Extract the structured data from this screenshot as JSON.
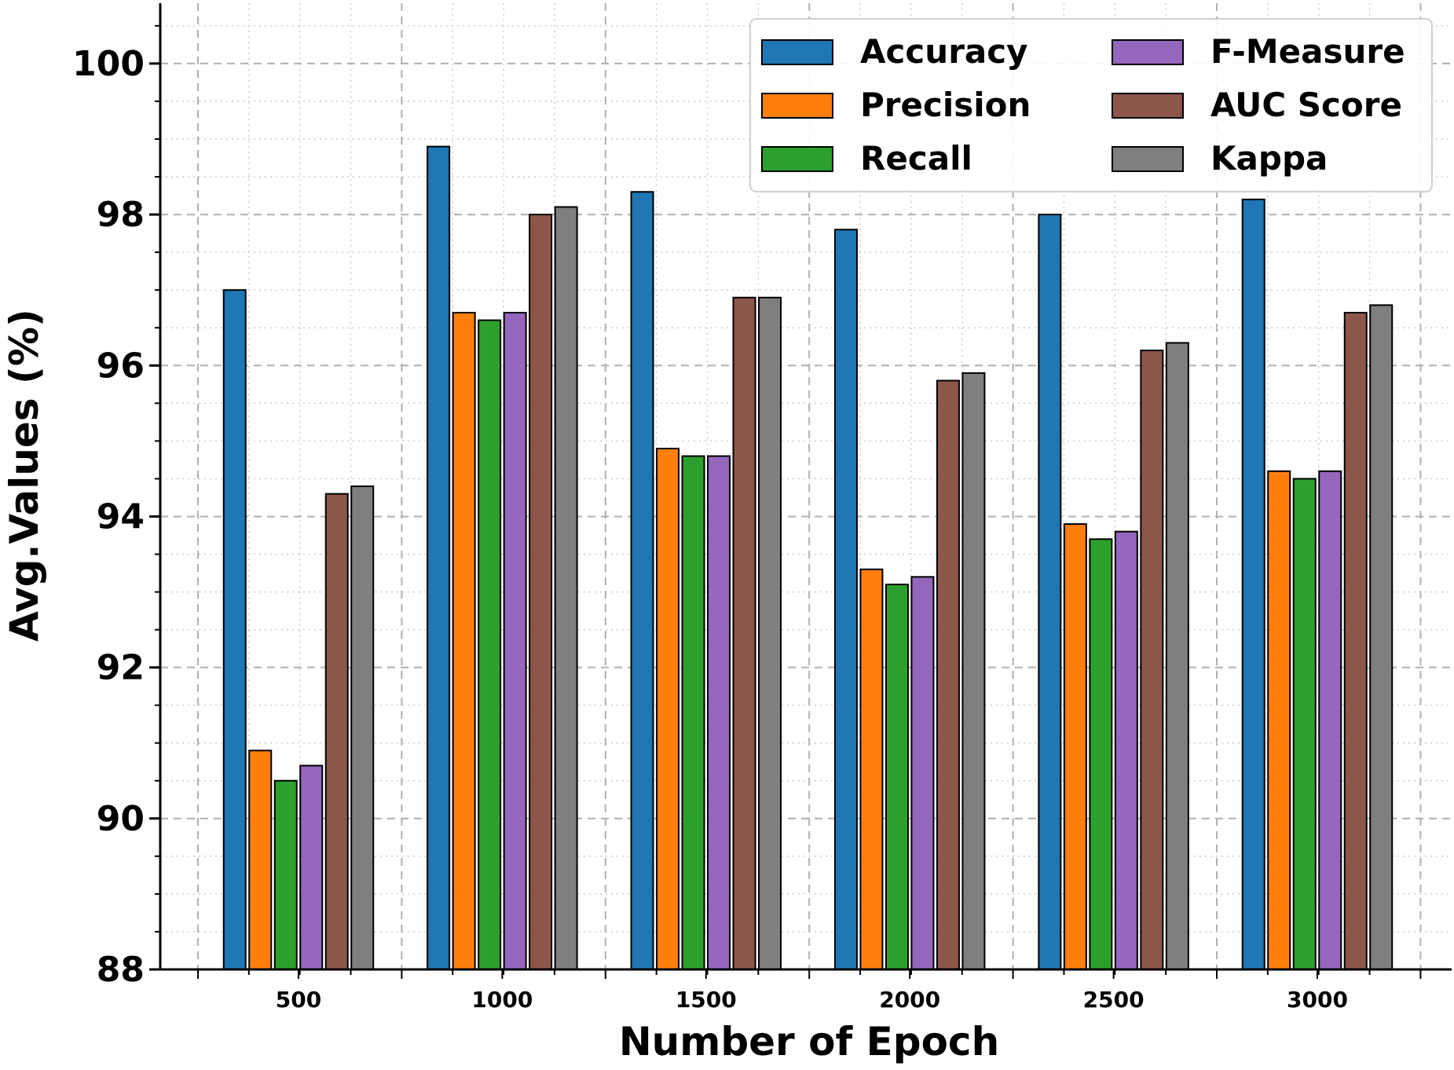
{
  "chart_data": {
    "type": "bar",
    "title": "",
    "xlabel": "Number of Epoch",
    "ylabel": "Avg.Values (%)",
    "categories": [
      "500",
      "1000",
      "1500",
      "2000",
      "2500",
      "3000"
    ],
    "ylim": [
      88,
      100.8
    ],
    "yticks": [
      88,
      90,
      92,
      94,
      96,
      98,
      100
    ],
    "grid": true,
    "legend_position": "top-right",
    "series": [
      {
        "name": "Accuracy",
        "color": "#1f77b4",
        "values": [
          97.0,
          98.9,
          98.3,
          97.8,
          98.0,
          98.2
        ]
      },
      {
        "name": "Precision",
        "color": "#ff7f0e",
        "values": [
          90.9,
          96.7,
          94.9,
          93.3,
          93.9,
          94.6
        ]
      },
      {
        "name": "Recall",
        "color": "#2ca02c",
        "values": [
          90.5,
          96.6,
          94.8,
          93.1,
          93.7,
          94.5
        ]
      },
      {
        "name": "F-Measure",
        "color": "#9467bd",
        "values": [
          90.7,
          96.7,
          94.8,
          93.2,
          93.8,
          94.6
        ]
      },
      {
        "name": "AUC Score",
        "color": "#8c564b",
        "values": [
          94.3,
          98.0,
          96.9,
          95.8,
          96.2,
          96.7
        ]
      },
      {
        "name": "Kappa",
        "color": "#7f7f7f",
        "values": [
          94.4,
          98.1,
          96.9,
          95.9,
          96.3,
          96.8
        ]
      }
    ]
  }
}
